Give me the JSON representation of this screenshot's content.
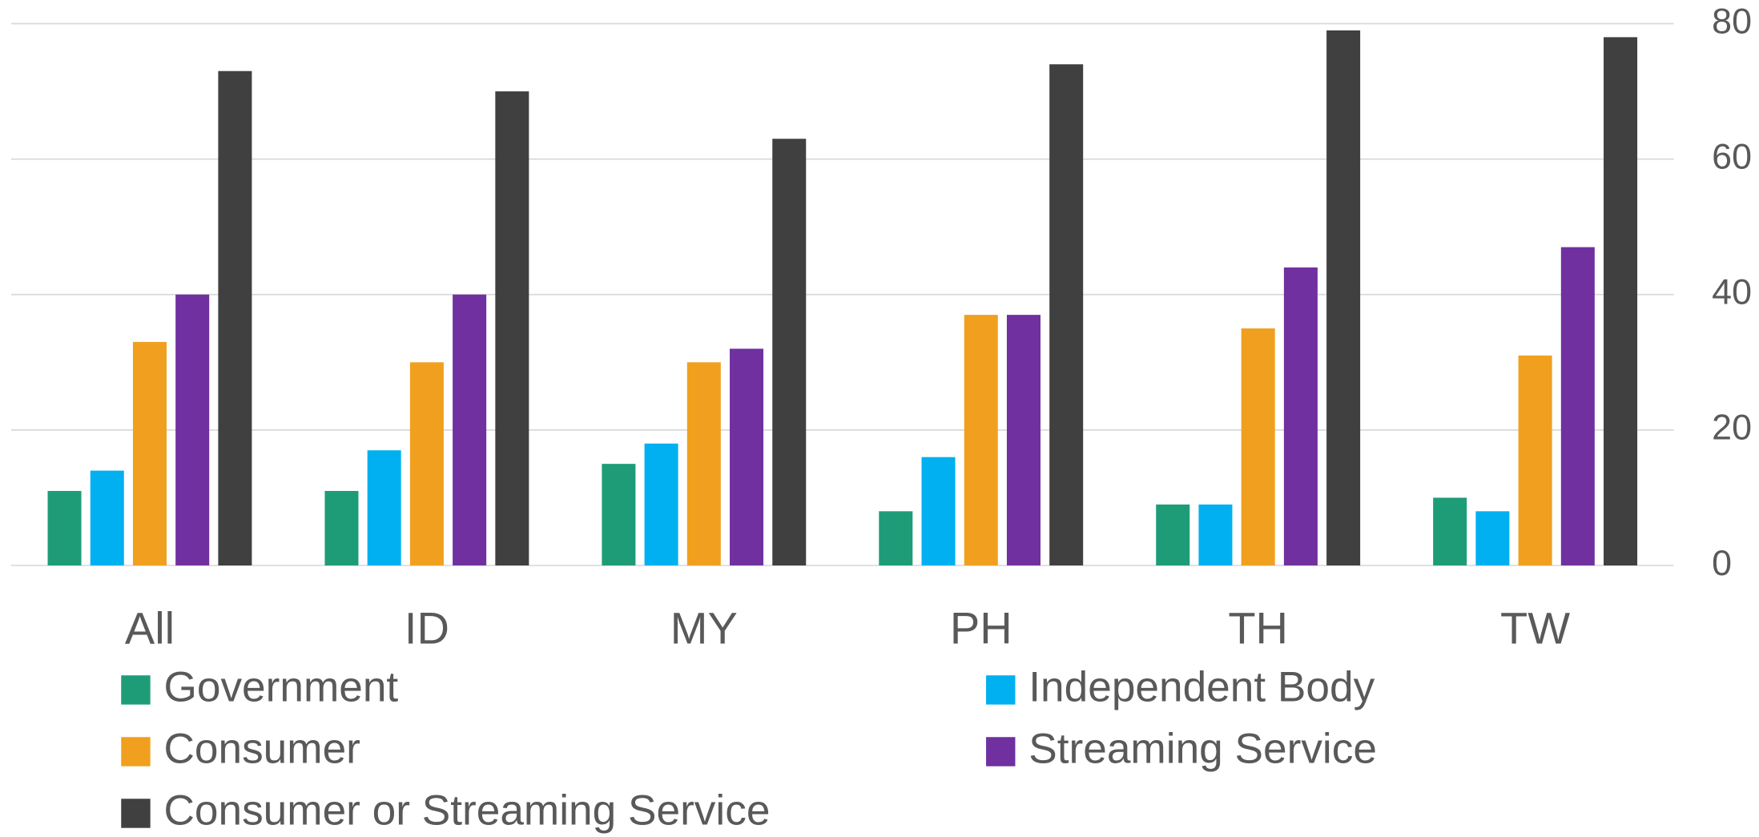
{
  "chart_data": {
    "type": "bar",
    "categories": [
      "All",
      "ID",
      "MY",
      "PH",
      "TH",
      "TW"
    ],
    "series": [
      {
        "name": "Government",
        "color": "#1e9c78",
        "values": [
          11,
          11,
          15,
          8,
          9,
          10
        ]
      },
      {
        "name": "Independent Body",
        "color": "#00b0f0",
        "values": [
          14,
          17,
          18,
          16,
          9,
          8
        ]
      },
      {
        "name": "Consumer",
        "color": "#f0a01e",
        "values": [
          33,
          30,
          30,
          37,
          35,
          31
        ]
      },
      {
        "name": "Streaming Service",
        "color": "#7030a0",
        "values": [
          40,
          40,
          32,
          37,
          44,
          47
        ]
      },
      {
        "name": "Consumer or Streaming Service",
        "color": "#404040",
        "values": [
          73,
          70,
          63,
          74,
          79,
          78
        ]
      }
    ],
    "ylim": [
      0,
      80
    ],
    "yticks": [
      0,
      20,
      40,
      60,
      80
    ],
    "grid": true,
    "yaxis_side": "right",
    "legend": "bottom"
  }
}
